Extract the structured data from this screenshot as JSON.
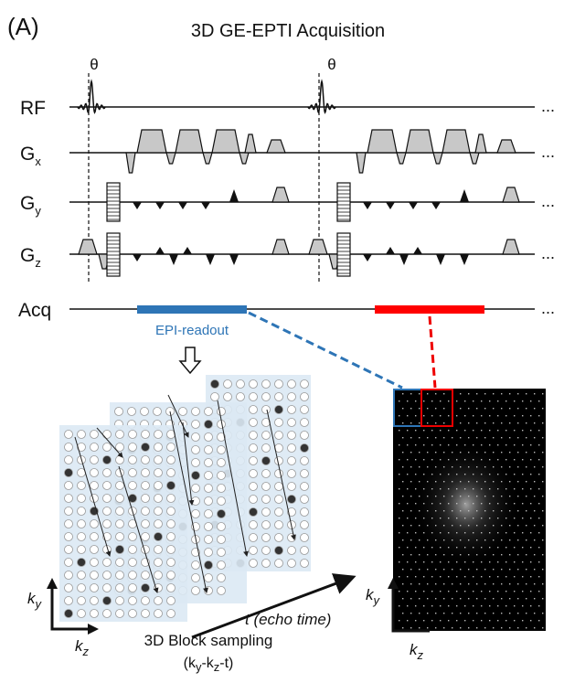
{
  "panel_label": "(A)",
  "title": "3D GE-EPTI Acquisition",
  "flip_angles": [
    "θ",
    "θ"
  ],
  "rows": [
    {
      "label": "RF",
      "ellipsis": "..."
    },
    {
      "label": "G",
      "sub": "x",
      "ellipsis": "..."
    },
    {
      "label": "G",
      "sub": "y",
      "ellipsis": "..."
    },
    {
      "label": "G",
      "sub": "z",
      "ellipsis": "..."
    },
    {
      "label": "Acq",
      "ellipsis": "..."
    }
  ],
  "readout_label": "EPI-readout",
  "block": {
    "axis_y": {
      "base": "k",
      "sub": "y"
    },
    "axis_z": {
      "base": "k",
      "sub": "z"
    },
    "time_axis": "t (echo time)",
    "caption": "3D Block sampling",
    "formula": [
      "(k",
      "y",
      "-k",
      "z",
      "-t)"
    ]
  },
  "image": {
    "axis_y": {
      "base": "k",
      "sub": "y"
    },
    "axis_z": {
      "base": "k",
      "sub": "z"
    }
  }
}
